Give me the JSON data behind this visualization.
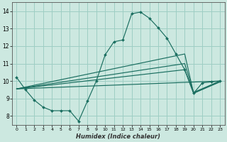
{
  "xlabel": "Humidex (Indice chaleur)",
  "xlim": [
    -0.5,
    23.5
  ],
  "ylim": [
    7.5,
    14.5
  ],
  "yticks": [
    8,
    9,
    10,
    11,
    12,
    13,
    14
  ],
  "xticks": [
    0,
    1,
    2,
    3,
    4,
    5,
    6,
    7,
    8,
    9,
    10,
    11,
    12,
    13,
    14,
    15,
    16,
    17,
    18,
    19,
    20,
    21,
    22,
    23
  ],
  "bg_color": "#cce8e0",
  "grid_color": "#9ecec4",
  "line_color": "#1a6e60",
  "curvy_x": [
    0,
    1,
    2,
    3,
    4,
    5,
    6,
    7,
    8,
    9,
    10,
    11,
    12,
    13,
    14,
    15,
    16,
    17,
    18,
    19,
    20,
    21,
    22,
    23
  ],
  "curvy_y": [
    10.2,
    9.5,
    8.9,
    8.5,
    8.3,
    8.3,
    8.3,
    7.7,
    8.85,
    10.0,
    11.5,
    12.25,
    12.35,
    13.85,
    13.95,
    13.6,
    13.05,
    12.45,
    11.55,
    10.65,
    9.3,
    9.9,
    9.95,
    10.0
  ],
  "trend1_x": [
    0,
    23
  ],
  "trend1_y": [
    9.55,
    10.0
  ],
  "trend2_x": [
    0,
    19,
    20,
    23
  ],
  "trend2_y": [
    9.55,
    10.65,
    9.3,
    9.95
  ],
  "trend3_x": [
    0,
    19,
    20,
    23
  ],
  "trend3_y": [
    9.55,
    11.0,
    9.35,
    10.0
  ],
  "trend4_x": [
    0,
    19,
    20,
    23
  ],
  "trend4_y": [
    9.55,
    11.55,
    9.3,
    10.0
  ]
}
